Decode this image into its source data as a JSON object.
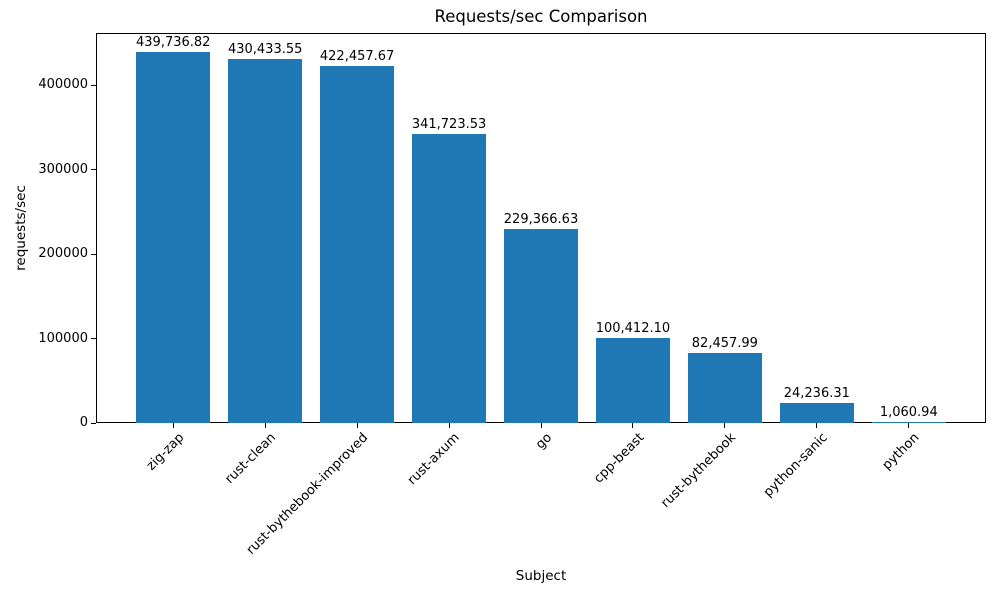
{
  "chart_data": {
    "type": "bar",
    "title": "Requests/sec Comparison",
    "xlabel": "Subject",
    "ylabel": "requests/sec",
    "categories": [
      "zig-zap",
      "rust-clean",
      "rust-bythebook-improved",
      "rust-axum",
      "go",
      "cpp-beast",
      "rust-bythebook",
      "python-sanic",
      "python"
    ],
    "values": [
      439736.82,
      430433.55,
      422457.67,
      341723.53,
      229366.63,
      100412.1,
      82457.99,
      24236.31,
      1060.94
    ],
    "value_labels": [
      "439,736.82",
      "430,433.55",
      "422,457.67",
      "341,723.53",
      "229,366.63",
      "100,412.10",
      "82,457.99",
      "24,236.31",
      "1,060.94"
    ],
    "ylim": [
      0,
      461723.66
    ],
    "yticks": {
      "values": [
        0,
        100000,
        200000,
        300000,
        400000
      ],
      "labels": [
        "0",
        "100000",
        "200000",
        "300000",
        "400000"
      ]
    },
    "bar_color": "#1f77b4",
    "grid": false,
    "legend": null
  }
}
